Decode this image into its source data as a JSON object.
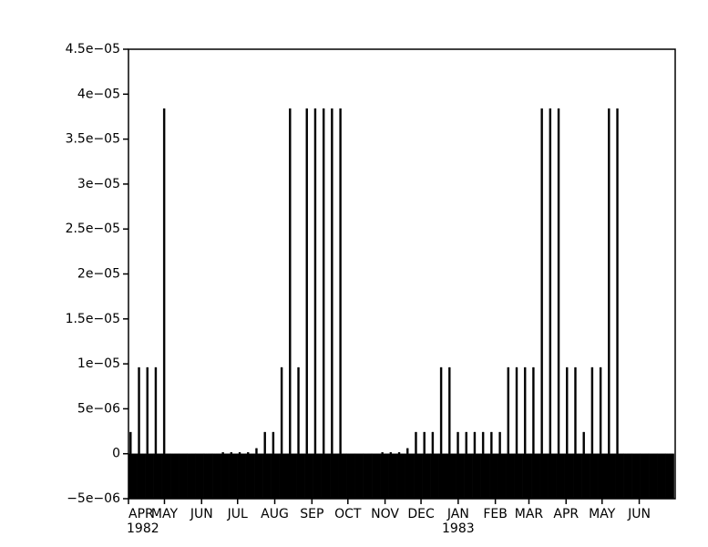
{
  "chart_data": {
    "type": "bar",
    "color": "#000000",
    "xlim": [
      0,
      456
    ],
    "ylim": [
      -5e-06,
      4.5e-05
    ],
    "yticks": [
      {
        "value": -5e-06,
        "label": "−5e−06"
      },
      0,
      {
        "value": 5e-06,
        "label": "5e−06"
      },
      {
        "value": 1e-05,
        "label": "1e−05"
      },
      {
        "value": 1.5e-05,
        "label": "1.5e−05"
      },
      {
        "value": 2e-05,
        "label": "2e−05"
      },
      {
        "value": 2.5e-05,
        "label": "2.5e−05"
      },
      {
        "value": 3e-05,
        "label": "3e−05"
      },
      {
        "value": 3.5e-05,
        "label": "3.5e−05"
      },
      {
        "value": 4e-05,
        "label": "4e−05"
      },
      {
        "value": 4.5e-05,
        "label": "4.5e−05"
      }
    ],
    "xticks": [
      {
        "value": 0,
        "label": "APR"
      },
      {
        "value": 30,
        "label": "MAY"
      },
      {
        "value": 61,
        "label": "JUN"
      },
      {
        "value": 91,
        "label": "JUL"
      },
      {
        "value": 122,
        "label": "AUG"
      },
      {
        "value": 153,
        "label": "SEP"
      },
      {
        "value": 183,
        "label": "OCT"
      },
      {
        "value": 214,
        "label": "NOV"
      },
      {
        "value": 244,
        "label": "DEC"
      },
      {
        "value": 275,
        "label": "JAN"
      },
      {
        "value": 306,
        "label": "FEB"
      },
      {
        "value": 334,
        "label": "MAR"
      },
      {
        "value": 365,
        "label": "APR"
      },
      {
        "value": 395,
        "label": "MAY"
      },
      {
        "value": 426,
        "label": "JUN"
      }
    ],
    "year_labels": [
      {
        "value": 0,
        "label": "1982"
      },
      {
        "value": 275,
        "label": "1983"
      }
    ],
    "x": [
      1,
      8,
      15,
      22,
      29,
      36,
      43,
      50,
      57,
      64,
      71,
      78,
      85,
      92,
      99,
      106,
      113,
      120,
      127,
      134,
      141,
      148,
      155,
      162,
      169,
      176,
      183,
      190,
      197,
      204,
      211,
      218,
      225,
      232,
      239,
      246,
      253,
      260,
      267,
      274,
      281,
      288,
      295,
      302,
      309,
      316,
      323,
      330,
      337,
      344,
      351,
      358,
      365,
      372,
      379,
      386,
      393,
      400,
      407,
      414,
      421,
      428,
      435,
      442,
      449
    ],
    "values": [
      2.4e-06,
      9.6e-06,
      9.6e-06,
      9.6e-06,
      3.84e-05,
      0,
      0,
      0,
      0,
      0,
      0,
      1.5e-07,
      1.5e-07,
      1.5e-07,
      1.5e-07,
      6e-07,
      2.4e-06,
      2.4e-06,
      9.6e-06,
      3.84e-05,
      9.6e-06,
      3.84e-05,
      3.84e-05,
      3.84e-05,
      3.84e-05,
      3.84e-05,
      0,
      0,
      0,
      0,
      1.5e-07,
      1.5e-07,
      1.5e-07,
      6e-07,
      2.4e-06,
      2.4e-06,
      2.4e-06,
      9.6e-06,
      9.6e-06,
      2.4e-06,
      2.4e-06,
      2.4e-06,
      2.4e-06,
      2.4e-06,
      2.4e-06,
      9.6e-06,
      9.6e-06,
      9.6e-06,
      9.6e-06,
      3.84e-05,
      3.84e-05,
      3.84e-05,
      9.6e-06,
      9.6e-06,
      2.4e-06,
      9.6e-06,
      9.6e-06,
      3.84e-05,
      3.84e-05,
      0,
      0,
      0,
      0,
      0,
      0
    ]
  }
}
